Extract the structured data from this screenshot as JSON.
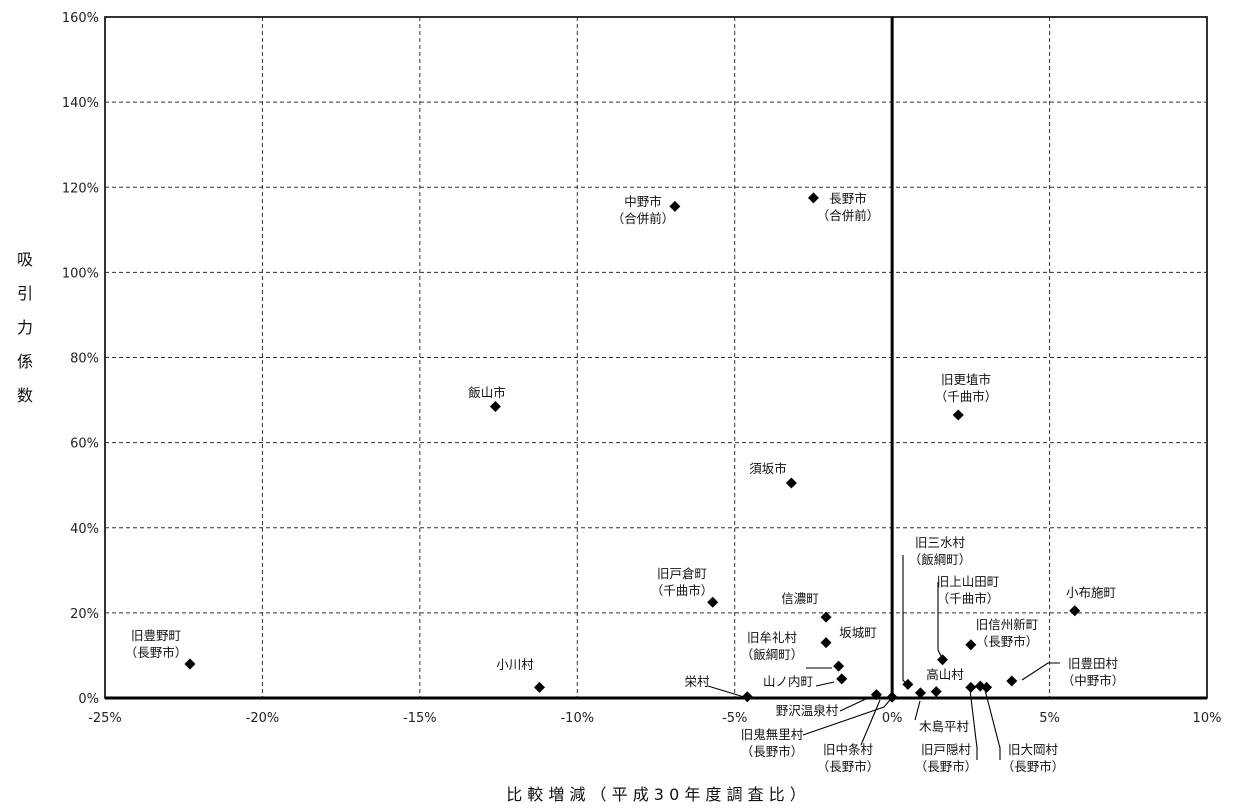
{
  "chart_data": {
    "type": "scatter",
    "title": "",
    "xlabel": "比 較 増 減 （ 平 成 3 0 年 度 調 査 比 ）",
    "ylabel": "吸引力係数",
    "xlim": [
      -25,
      10
    ],
    "ylim": [
      0,
      160
    ],
    "x_ticks": [
      -25,
      -20,
      -15,
      -10,
      -5,
      0,
      5,
      10
    ],
    "y_ticks": [
      0,
      20,
      40,
      60,
      80,
      100,
      120,
      140,
      160
    ],
    "x_tick_labels": [
      "-25%",
      "-20%",
      "-15%",
      "-10%",
      "-5%",
      "0%",
      "5%",
      "10%"
    ],
    "y_tick_labels": [
      "0%",
      "20%",
      "40%",
      "60%",
      "80%",
      "100%",
      "120%",
      "140%",
      "160%"
    ],
    "grid": "dashed",
    "points": [
      {
        "label": "長野市\n（合併前）",
        "x": -2.5,
        "y": 117.5
      },
      {
        "label": "中野市\n（合併前）",
        "x": -6.9,
        "y": 115.5
      },
      {
        "label": "飯山市",
        "x": -12.6,
        "y": 68.5
      },
      {
        "label": "旧更埴市\n（千曲市）",
        "x": 2.1,
        "y": 66.5
      },
      {
        "label": "須坂市",
        "x": -3.2,
        "y": 50.5
      },
      {
        "label": "旧戸倉町\n（千曲市）",
        "x": -5.7,
        "y": 22.5
      },
      {
        "label": "信濃町",
        "x": -2.1,
        "y": 19.0
      },
      {
        "label": "坂城町",
        "x": -2.1,
        "y": 13.0
      },
      {
        "label": "旧牟礼村\n（飯綱町）",
        "x": -1.7,
        "y": 7.5
      },
      {
        "label": "山ノ内町",
        "x": -1.6,
        "y": 4.5
      },
      {
        "label": "栄村",
        "x": -4.6,
        "y": 0.3
      },
      {
        "label": "野沢温泉村",
        "x": -0.5,
        "y": 0.8
      },
      {
        "label": "旧鬼無里村\n（長野市）",
        "x": 0.0,
        "y": 0.2
      },
      {
        "label": "旧中条村\n（長野市）",
        "x": 0.9,
        "y": 1.2
      },
      {
        "label": "木島平村",
        "x": 1.4,
        "y": 1.5
      },
      {
        "label": "旧三水村\n（飯綱町）",
        "x": 0.5,
        "y": 3.2
      },
      {
        "label": "旧上山田町\n（千曲市）",
        "x": 1.6,
        "y": 9.0
      },
      {
        "label": "旧信州新町\n（長野市）",
        "x": 2.5,
        "y": 12.5
      },
      {
        "label": "高山村",
        "x": 2.5,
        "y": 2.5
      },
      {
        "label": "旧戸隠村\n（長野市）",
        "x": 2.8,
        "y": 2.8
      },
      {
        "label": "旧大岡村\n（長野市）",
        "x": 3.0,
        "y": 2.5
      },
      {
        "label": "旧豊田村\n（中野市）",
        "x": 3.8,
        "y": 4.0
      },
      {
        "label": "小布施町",
        "x": 5.8,
        "y": 20.5
      },
      {
        "label": "旧豊野町\n（長野市）",
        "x": -22.3,
        "y": 8.0
      },
      {
        "label": "小川村",
        "x": -11.2,
        "y": 2.5
      }
    ]
  }
}
